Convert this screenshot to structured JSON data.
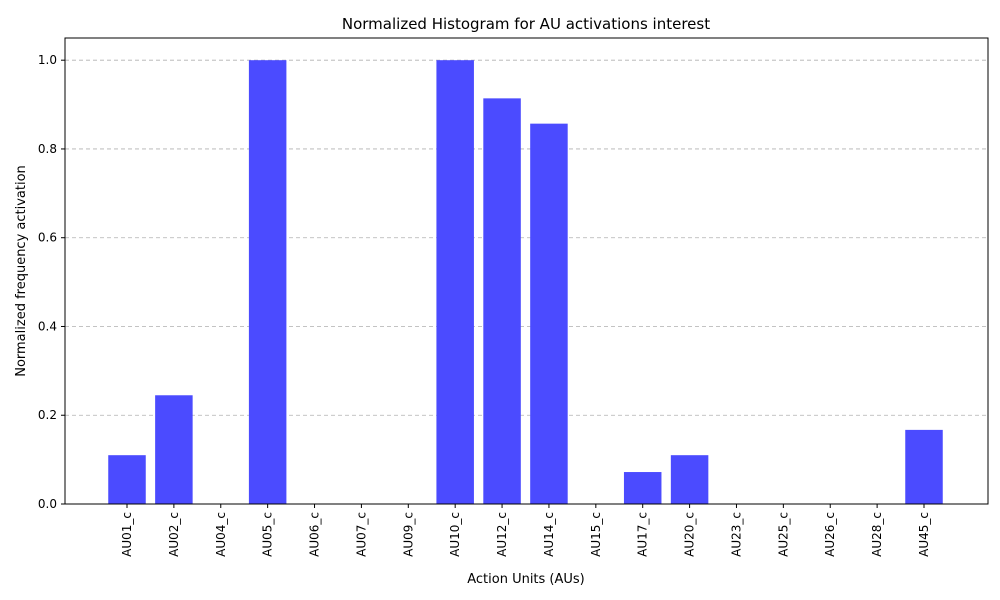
{
  "chart_data": {
    "type": "bar",
    "title": "Normalized Histogram for AU activations interest",
    "xlabel": "Action Units (AUs)",
    "ylabel": "Normalized frequency activation",
    "categories": [
      "AU01_c",
      "AU02_c",
      "AU04_c",
      "AU05_c",
      "AU06_c",
      "AU07_c",
      "AU09_c",
      "AU10_c",
      "AU12_c",
      "AU14_c",
      "AU15_c",
      "AU17_c",
      "AU20_c",
      "AU23_c",
      "AU25_c",
      "AU26_c",
      "AU28_c",
      "AU45_c"
    ],
    "values": [
      0.11,
      0.245,
      0.0,
      1.0,
      0.0,
      0.0,
      0.0,
      1.0,
      0.914,
      0.857,
      0.0,
      0.072,
      0.11,
      0.0,
      0.0,
      0.0,
      0.0,
      0.167
    ],
    "ylim": [
      0,
      1.05
    ],
    "yticks": [
      "0.0",
      "0.2",
      "0.4",
      "0.6",
      "0.8",
      "1.0"
    ],
    "grid": "y-dashed",
    "bar_color": "#4b4bff"
  }
}
